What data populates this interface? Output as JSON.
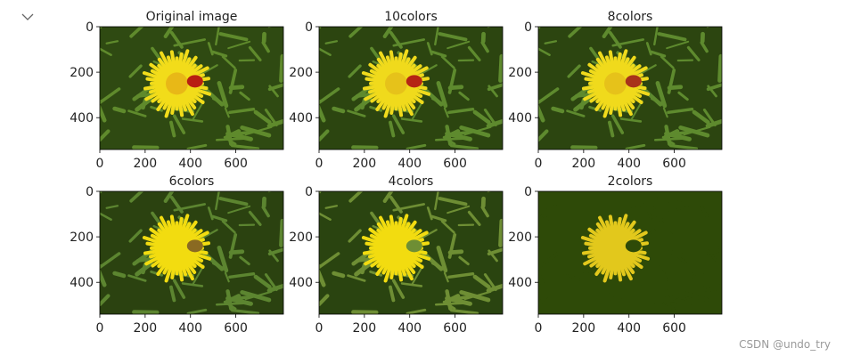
{
  "panels": [
    {
      "title": "Original image",
      "xlim": [
        0,
        810
      ],
      "ylim": [
        540,
        0
      ],
      "xticks": [
        0,
        200,
        400,
        600
      ],
      "yticks": [
        0,
        200,
        400
      ],
      "colors": {
        "background": "#2f4a12",
        "grass": "#5f8a2c",
        "flower": "#f2dc1a",
        "center": "#e8b817",
        "bug": "#b81e12"
      }
    },
    {
      "title": "10colors",
      "xlim": [
        0,
        810
      ],
      "ylim": [
        540,
        0
      ],
      "xticks": [
        0,
        200,
        400,
        600
      ],
      "yticks": [
        0,
        200,
        400
      ],
      "colors": {
        "background": "#2c4510",
        "grass": "#5e8a2e",
        "flower": "#f0da1c",
        "center": "#e6c21a",
        "bug": "#b52414"
      }
    },
    {
      "title": "8colors",
      "xlim": [
        0,
        810
      ],
      "ylim": [
        540,
        0
      ],
      "xticks": [
        0,
        200,
        400,
        600
      ],
      "yticks": [
        0,
        200,
        400
      ],
      "colors": {
        "background": "#2c4510",
        "grass": "#5e8a2e",
        "flower": "#f0da1c",
        "center": "#e6c21a",
        "bug": "#a8321a"
      }
    },
    {
      "title": "6colors",
      "xlim": [
        0,
        810
      ],
      "ylim": [
        540,
        0
      ],
      "xticks": [
        0,
        200,
        400,
        600
      ],
      "yticks": [
        0,
        200,
        400
      ],
      "colors": {
        "background": "#2b4210",
        "grass": "#5c8530",
        "flower": "#f2dc10",
        "center": "#f2dc10",
        "bug": "#8a6a22"
      }
    },
    {
      "title": "4colors",
      "xlim": [
        0,
        810
      ],
      "ylim": [
        540,
        0
      ],
      "xticks": [
        0,
        200,
        400,
        600
      ],
      "yticks": [
        0,
        200,
        400
      ],
      "colors": {
        "background": "#2a4410",
        "grass": "#6e8e34",
        "flower": "#f2dc10",
        "center": "#f2dc10",
        "bug": "#6e8e34"
      }
    },
    {
      "title": "2colors",
      "xlim": [
        0,
        810
      ],
      "ylim": [
        540,
        0
      ],
      "xticks": [
        0,
        200,
        400,
        600
      ],
      "yticks": [
        0,
        200,
        400
      ],
      "colors": {
        "background": "#2e4a08",
        "grass": "#2e4a08",
        "flower": "#e2c81c",
        "center": "#e2c81c",
        "bug": "#2e4a08"
      }
    }
  ],
  "watermark": "CSDN @undo_try"
}
